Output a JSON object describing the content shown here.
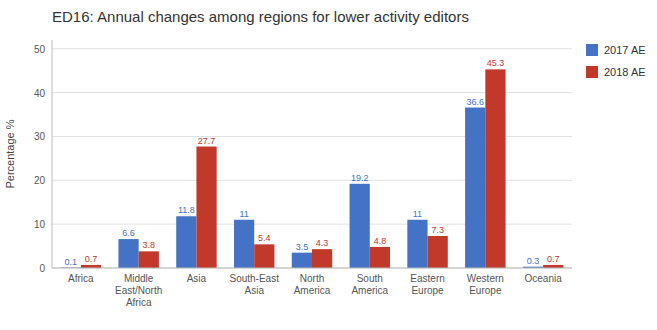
{
  "chart_data": {
    "type": "bar",
    "title": "ED16: Annual changes among regions for lower activity editors",
    "ylabel": "Percentage %",
    "categories": [
      "Africa",
      "Middle\nEast/North\nAfrica",
      "Asia",
      "South-East\nAsia",
      "North\nAmerica",
      "South\nAmerica",
      "Eastern\nEurope",
      "Western\nEurope",
      "Oceania"
    ],
    "series": [
      {
        "name": "2017 AE",
        "color": "#4472C4",
        "values": [
          0.1,
          6.6,
          11.8,
          11,
          3.5,
          19.2,
          11,
          36.6,
          0.3
        ]
      },
      {
        "name": "2018 AE",
        "color": "#C0392B",
        "values": [
          0.7,
          3.8,
          27.7,
          5.4,
          4.3,
          4.8,
          7.3,
          45.3,
          0.7
        ]
      }
    ],
    "ylim": [
      0,
      52
    ],
    "yticks": [
      0,
      10,
      20,
      30,
      40,
      50
    ],
    "grid": true,
    "legend": "right",
    "data_labels": true
  }
}
